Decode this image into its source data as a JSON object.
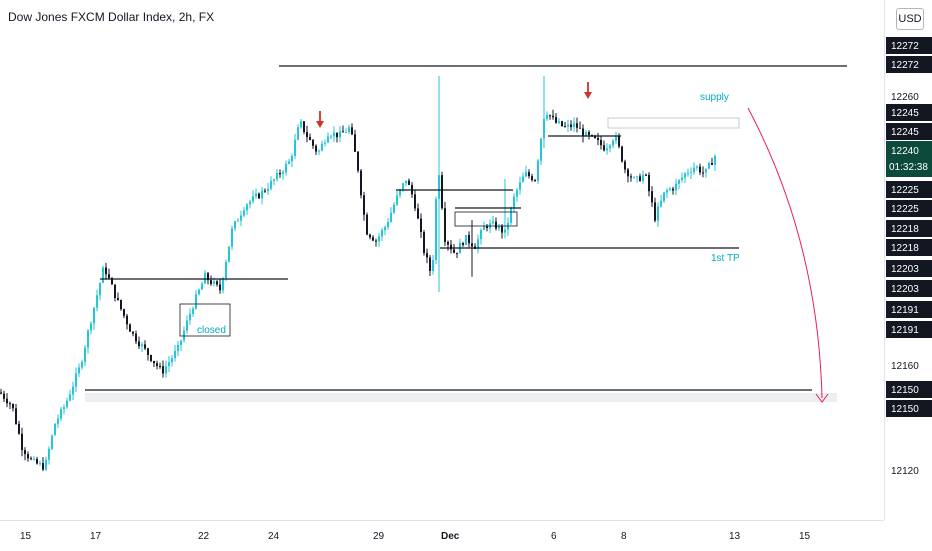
{
  "header": {
    "title": "Dow Jones FXCM Dollar Index, 2h, FX",
    "currency_button": "USD"
  },
  "colors": {
    "up": "#26c6da",
    "down": "#131722",
    "annotation_text": "#00acc1",
    "arrow_red": "#d32f2f",
    "projection_pink": "#e91e63",
    "current_badge": "#0c4a3b"
  },
  "chart_data": {
    "type": "candlestick",
    "title": "Dow Jones FXCM Dollar Index, 2h, FX",
    "symbol": "Dow Jones FXCM Dollar Index",
    "interval": "2h",
    "exchange": "FX",
    "currency": "USD",
    "ylim": [
      12111,
      12282
    ],
    "y_ticks": [
      "12272",
      "12260",
      "12245",
      "12240",
      "12225",
      "12218",
      "12203",
      "12191",
      "12160",
      "12150",
      "12120"
    ],
    "x_ticks": [
      "15",
      "17",
      "22",
      "24",
      "29",
      "Dec",
      "6",
      "8",
      "13",
      "15"
    ],
    "current_price": "12240",
    "countdown": "01:32:38",
    "price_badges": [
      "12272",
      "12272",
      "12245",
      "12245",
      "12225",
      "12225",
      "12218",
      "12218",
      "12203",
      "12203",
      "12191",
      "12191",
      "12150",
      "12150"
    ],
    "path": [
      [
        0,
        12145
      ],
      [
        12,
        12140
      ],
      [
        22,
        12124
      ],
      [
        32,
        12118
      ],
      [
        45,
        12116
      ],
      [
        55,
        12133
      ],
      [
        65,
        12140
      ],
      [
        80,
        12155
      ],
      [
        92,
        12175
      ],
      [
        104,
        12194
      ],
      [
        118,
        12180
      ],
      [
        132,
        12168
      ],
      [
        148,
        12160
      ],
      [
        162,
        12153
      ],
      [
        178,
        12162
      ],
      [
        192,
        12178
      ],
      [
        205,
        12190
      ],
      [
        220,
        12185
      ],
      [
        232,
        12208
      ],
      [
        245,
        12218
      ],
      [
        260,
        12222
      ],
      [
        275,
        12228
      ],
      [
        290,
        12235
      ],
      [
        300,
        12250
      ],
      [
        308,
        12244
      ],
      [
        318,
        12238
      ],
      [
        328,
        12246
      ],
      [
        340,
        12245
      ],
      [
        350,
        12248
      ],
      [
        358,
        12232
      ],
      [
        366,
        12208
      ],
      [
        376,
        12204
      ],
      [
        386,
        12210
      ],
      [
        396,
        12220
      ],
      [
        406,
        12228
      ],
      [
        414,
        12220
      ],
      [
        424,
        12200
      ],
      [
        432,
        12190
      ],
      [
        438,
        12235
      ],
      [
        445,
        12205
      ],
      [
        455,
        12199
      ],
      [
        465,
        12205
      ],
      [
        475,
        12202
      ],
      [
        485,
        12210
      ],
      [
        495,
        12210
      ],
      [
        505,
        12207
      ],
      [
        515,
        12222
      ],
      [
        525,
        12230
      ],
      [
        535,
        12228
      ],
      [
        545,
        12255
      ],
      [
        555,
        12250
      ],
      [
        565,
        12248
      ],
      [
        575,
        12249
      ],
      [
        585,
        12245
      ],
      [
        595,
        12243
      ],
      [
        605,
        12240
      ],
      [
        615,
        12245
      ],
      [
        625,
        12232
      ],
      [
        635,
        12227
      ],
      [
        645,
        12230
      ],
      [
        655,
        12213
      ],
      [
        665,
        12223
      ],
      [
        675,
        12225
      ],
      [
        685,
        12230
      ],
      [
        695,
        12233
      ],
      [
        705,
        12230
      ],
      [
        715,
        12237
      ]
    ],
    "spikes": [
      {
        "x": 438,
        "high": 12268,
        "low": 12184
      },
      {
        "x": 472,
        "high": 12212,
        "low": 12190
      },
      {
        "x": 505,
        "high": 12228,
        "low": 12205
      },
      {
        "x": 545,
        "high": 12268,
        "low": 12240
      }
    ]
  },
  "annotations": {
    "supply_label": "supply",
    "first_tp_label": "1st TP",
    "closed_label": "closed"
  }
}
